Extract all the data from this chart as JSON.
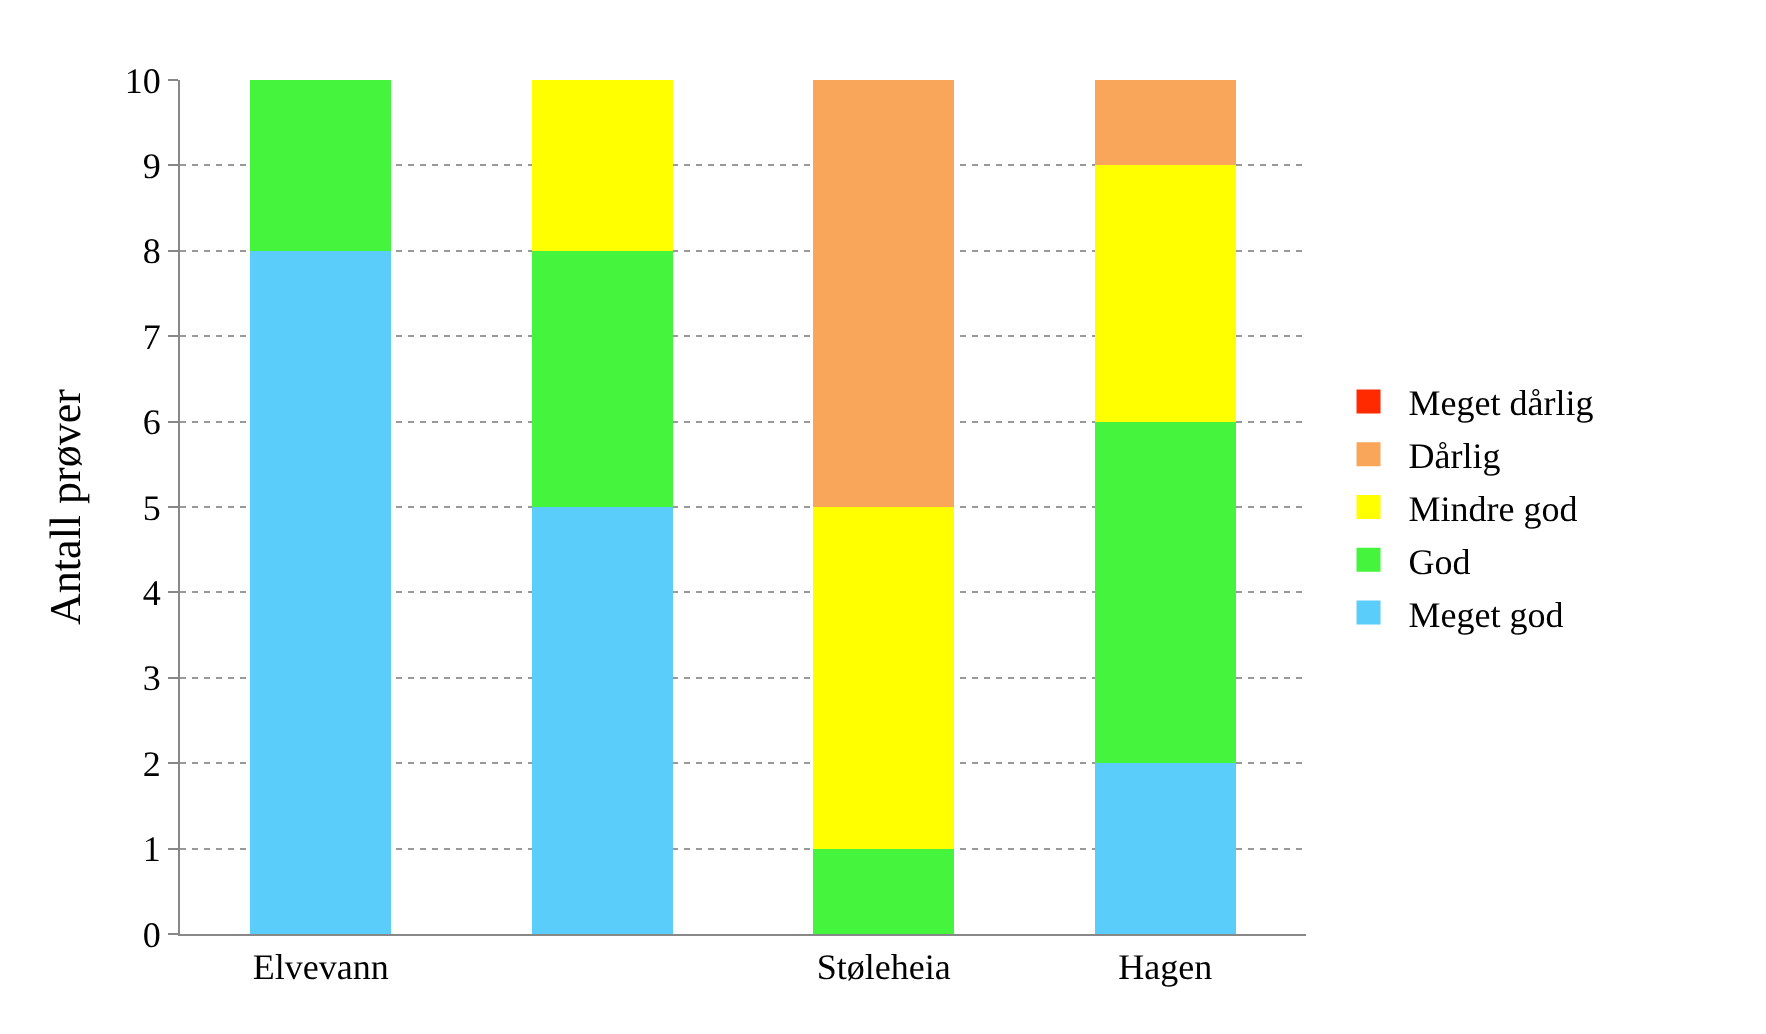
{
  "chart_data": {
    "type": "bar",
    "stacked": true,
    "ylabel": "Antall prøver",
    "categories": [
      "Elvevann",
      null,
      "Støleheia",
      "Hagen"
    ],
    "series": [
      {
        "name": "Meget god",
        "color": "#5bcdfa",
        "values": [
          8,
          5,
          0,
          2
        ]
      },
      {
        "name": "God",
        "color": "#45f53d",
        "values": [
          2,
          3,
          1,
          4
        ]
      },
      {
        "name": "Mindre god",
        "color": "#ffff00",
        "values": [
          0,
          2,
          4,
          3
        ]
      },
      {
        "name": "Dårlig",
        "color": "#f9a65a",
        "values": [
          0,
          0,
          5,
          1
        ]
      },
      {
        "name": "Meget dårlig",
        "color": "#ff2a00",
        "values": [
          0,
          0,
          0,
          0
        ]
      }
    ],
    "ylim": [
      0,
      10
    ],
    "yticks": [
      0,
      1,
      2,
      3,
      4,
      5,
      6,
      7,
      8,
      9,
      10
    ],
    "grid": "y",
    "legend": "right"
  }
}
